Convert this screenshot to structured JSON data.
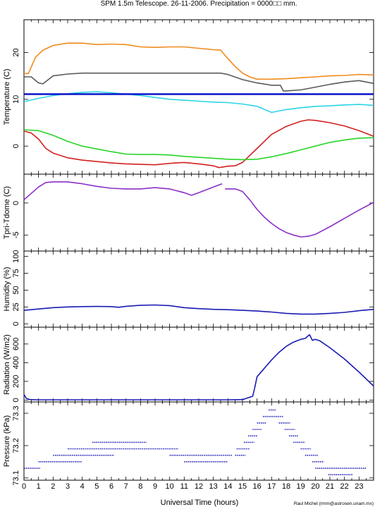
{
  "header": {
    "title": "SPM 1.5m Telescope. 26-11-2006. Precipitation = 0000□□ mm."
  },
  "footer": {
    "xlabel": "Universal Time (hours)",
    "credit": "Raul Michel (rmm@astrosen.unam.mx)"
  },
  "chart_data": [
    {
      "type": "line",
      "ylabel": "Temperature (C)",
      "xlim": [
        0,
        24
      ],
      "ylim": [
        -6,
        27
      ],
      "yticks": [
        0,
        10,
        20
      ],
      "xticks": [
        0,
        1,
        2,
        3,
        4,
        5,
        6,
        7,
        8,
        9,
        10,
        11,
        12,
        13,
        14,
        15,
        16,
        17,
        18,
        19,
        20,
        21,
        22,
        23
      ],
      "series": [
        {
          "color": "#f08a1c",
          "style": "line",
          "x": [
            0,
            0.3,
            0.8,
            1.3,
            2,
            3,
            4,
            5,
            6,
            7,
            8,
            9,
            10,
            11,
            12,
            13,
            13.5,
            14,
            14.5,
            15,
            15.5,
            16,
            17,
            18,
            19,
            20,
            21,
            22,
            23,
            24
          ],
          "y": [
            15.5,
            15.5,
            19,
            20.5,
            21.5,
            22,
            22,
            21.7,
            21.8,
            21.7,
            21.2,
            21.1,
            21.2,
            21.2,
            20.9,
            20.6,
            20.5,
            18.7,
            17,
            15.6,
            14.8,
            14.3,
            14.3,
            14.4,
            14.6,
            14.8,
            15,
            15.1,
            15.3,
            15.2
          ]
        },
        {
          "color": "#5a5a5a",
          "style": "line",
          "x": [
            0,
            0.5,
            1,
            1.3,
            2,
            3,
            4,
            6,
            8,
            10,
            12,
            13.5,
            14,
            15,
            16,
            17,
            17.6,
            17.8,
            18,
            19,
            20,
            21,
            22,
            23,
            24
          ],
          "y": [
            14.8,
            14.8,
            13.5,
            13.3,
            15,
            15.4,
            15.6,
            15.6,
            15.6,
            15.6,
            15.6,
            15.6,
            15.3,
            14.2,
            13.5,
            13,
            13,
            11.8,
            11.8,
            12,
            12.6,
            13.2,
            13.7,
            14,
            13.4
          ]
        },
        {
          "color": "#2dd3e8",
          "style": "line",
          "x": [
            0,
            1,
            2,
            3,
            4,
            5,
            6,
            7,
            8,
            9,
            10,
            11,
            12,
            13,
            14,
            15,
            16,
            17,
            18,
            19,
            20,
            21,
            22,
            23,
            24
          ],
          "y": [
            9.5,
            10.2,
            10.8,
            11.2,
            11.5,
            11.6,
            11.4,
            11.1,
            10.8,
            10.4,
            10,
            9.8,
            9.6,
            9.4,
            9.3,
            9,
            8.5,
            7.2,
            7.8,
            8.2,
            8.5,
            8.6,
            8.8,
            8.9,
            8.7
          ]
        },
        {
          "color": "#0a14c8",
          "style": "line",
          "x": [
            0,
            24
          ],
          "y": [
            11.1,
            11.1
          ]
        },
        {
          "color": "#d42020",
          "style": "line",
          "x": [
            0,
            0.5,
            1,
            1.5,
            2,
            3,
            4,
            5,
            6,
            7,
            8,
            9,
            10,
            11,
            12,
            13,
            13.4,
            14,
            14.5,
            15,
            16,
            17,
            18,
            19,
            19.5,
            20,
            21,
            22,
            23,
            24
          ],
          "y": [
            3.2,
            2.8,
            1.5,
            -0.5,
            -1.5,
            -2.5,
            -3,
            -3.3,
            -3.6,
            -3.8,
            -3.9,
            -4,
            -3.7,
            -3.5,
            -3.8,
            -4.2,
            -4.6,
            -4.3,
            -4.2,
            -3.5,
            -0.5,
            2.5,
            4.2,
            5.3,
            5.6,
            5.5,
            5,
            4.3,
            3.3,
            2.1
          ]
        },
        {
          "color": "#28d428",
          "style": "line",
          "x": [
            0,
            1,
            2,
            3,
            4,
            5,
            6,
            7,
            8,
            9,
            10,
            11,
            12,
            13,
            14,
            15,
            16,
            17,
            18,
            19,
            20,
            21,
            22,
            23,
            24
          ],
          "y": [
            3.5,
            3.3,
            2.3,
            1,
            0,
            -0.6,
            -1.2,
            -1.7,
            -1.8,
            -1.8,
            -1.9,
            -2.2,
            -2.4,
            -2.6,
            -2.8,
            -2.9,
            -2.8,
            -2.3,
            -1.6,
            -0.8,
            0,
            0.8,
            1.3,
            1.7,
            1.8
          ]
        }
      ]
    },
    {
      "type": "line",
      "ylabel": "Tpri-Tdome (C)",
      "xlim": [
        0,
        24
      ],
      "ylim": [
        -7.5,
        4.5
      ],
      "yticks": [
        -5,
        0
      ],
      "xticks": [
        0,
        1,
        2,
        3,
        4,
        5,
        6,
        7,
        8,
        9,
        10,
        11,
        12,
        13,
        14,
        15,
        16,
        17,
        18,
        19,
        20,
        21,
        22,
        23
      ],
      "series": [
        {
          "color": "#8a2fc8",
          "style": "line",
          "x": [
            0,
            0.5,
            1,
            1.5,
            2,
            3,
            4,
            5,
            6,
            7,
            8,
            9,
            10,
            11,
            11.5,
            12,
            13,
            13.6
          ],
          "y": [
            0.5,
            1.5,
            2.5,
            3.2,
            3.3,
            3.3,
            3,
            2.6,
            2.3,
            2.2,
            2.2,
            2.4,
            2.2,
            1.6,
            1.2,
            1.6,
            2.5,
            3
          ]
        },
        {
          "color": "#8a2fc8",
          "style": "line",
          "x": [
            13.8,
            14.5,
            15,
            15.5,
            16,
            16.5,
            17,
            17.5,
            18,
            18.5,
            19,
            19.5,
            20,
            21,
            22,
            23,
            24
          ],
          "y": [
            2.2,
            2.2,
            1.8,
            0.5,
            -1,
            -2.2,
            -3.2,
            -4,
            -4.6,
            -5,
            -5.3,
            -5.2,
            -4.9,
            -3.7,
            -2.4,
            -1.1,
            0.1
          ]
        }
      ]
    },
    {
      "type": "line",
      "ylabel": "Humidity (%)",
      "xlim": [
        0,
        24
      ],
      "ylim": [
        -5,
        108
      ],
      "yticks": [
        0,
        25,
        50,
        75,
        100
      ],
      "xticks": [
        0,
        1,
        2,
        3,
        4,
        5,
        6,
        7,
        8,
        9,
        10,
        11,
        12,
        13,
        14,
        15,
        16,
        17,
        18,
        19,
        20,
        21,
        22,
        23
      ],
      "series": [
        {
          "color": "#1a1ab4",
          "style": "line",
          "x": [
            0,
            1,
            2,
            3,
            4,
            5,
            6,
            6.5,
            7,
            8,
            9,
            10,
            11,
            12,
            13,
            14,
            15,
            16,
            17,
            18,
            19,
            20,
            21,
            22,
            23,
            24
          ],
          "y": [
            20,
            22,
            24,
            25,
            25.5,
            25.8,
            25.5,
            24.5,
            26,
            27.5,
            28,
            27,
            24,
            22.5,
            21.5,
            21,
            20,
            19,
            17.5,
            15.5,
            14.5,
            14.5,
            15.5,
            17,
            19.5,
            21.5
          ]
        }
      ]
    },
    {
      "type": "line",
      "ylabel": "Radiation (W/m2)",
      "xlim": [
        0,
        24
      ],
      "ylim": [
        -20,
        780
      ],
      "yticks": [
        0,
        200,
        400,
        600
      ],
      "xticks": [
        0,
        1,
        2,
        3,
        4,
        5,
        6,
        7,
        8,
        9,
        10,
        11,
        12,
        13,
        14,
        15,
        16,
        17,
        18,
        19,
        20,
        21,
        22,
        23
      ],
      "series": [
        {
          "color": "#1a1ab4",
          "style": "line",
          "x": [
            0,
            0.15,
            0.4,
            1,
            2,
            4,
            6,
            8,
            10,
            12,
            14,
            15,
            15.7,
            15.85,
            16,
            16.5,
            17,
            17.5,
            18,
            18.5,
            19,
            19.3,
            19.6,
            19.8,
            20,
            20.3,
            21,
            22,
            23,
            24
          ],
          "y": [
            60,
            20,
            5,
            3,
            3,
            3,
            3,
            3,
            3,
            3,
            3,
            5,
            40,
            140,
            250,
            340,
            430,
            510,
            575,
            620,
            650,
            660,
            700,
            640,
            650,
            635,
            560,
            440,
            300,
            150
          ]
        }
      ]
    },
    {
      "type": "scatter",
      "ylabel": "Pressure (kPa)",
      "xlim": [
        0,
        24
      ],
      "ylim": [
        73.093,
        73.335
      ],
      "yticks": [
        73.1,
        73.2,
        73.3
      ],
      "xticks": [
        0,
        1,
        2,
        3,
        4,
        5,
        6,
        7,
        8,
        9,
        10,
        11,
        12,
        13,
        14,
        15,
        16,
        17,
        18,
        19,
        20,
        21,
        22,
        23
      ],
      "series": [
        {
          "color": "#1a1ab4",
          "style": "levels",
          "segments": [
            {
              "y": 73.13,
              "ranges": [
                [
                  0,
                  1.1
                ],
                [
                  20,
                  23.5
                ]
              ]
            },
            {
              "y": 73.15,
              "ranges": [
                [
                  1,
                  4
                ],
                [
                  11,
                  14
                ],
                [
                  19.8,
                  20.6
                ]
              ]
            },
            {
              "y": 73.17,
              "ranges": [
                [
                  2,
                  6.2
                ],
                [
                  10,
                  14.3
                ],
                [
                  14.5,
                  15.2
                ],
                [
                  19.3,
                  20.2
                ]
              ]
            },
            {
              "y": 73.19,
              "ranges": [
                [
                  3,
                  10.6
                ],
                [
                  14.6,
                  15.5
                ],
                [
                  19,
                  19.7
                ]
              ]
            },
            {
              "y": 73.21,
              "ranges": [
                [
                  4.7,
                  8.4
                ],
                [
                  15.1,
                  15.8
                ],
                [
                  18.5,
                  19.3
                ]
              ]
            },
            {
              "y": 73.23,
              "ranges": [
                [
                  15.4,
                  16
                ],
                [
                  18.2,
                  18.8
                ]
              ]
            },
            {
              "y": 73.25,
              "ranges": [
                [
                  15.7,
                  16.3
                ],
                [
                  17.9,
                  18.6
                ]
              ]
            },
            {
              "y": 73.27,
              "ranges": [
                [
                  16,
                  16.6
                ],
                [
                  17.5,
                  18.3
                ]
              ]
            },
            {
              "y": 73.29,
              "ranges": [
                [
                  16.4,
                  17.8
                ]
              ]
            },
            {
              "y": 73.31,
              "ranges": [
                [
                  16.8,
                  17.3
                ]
              ]
            },
            {
              "y": 73.11,
              "ranges": [
                [
                  20.9,
                  22.6
                ]
              ]
            }
          ]
        }
      ]
    }
  ]
}
